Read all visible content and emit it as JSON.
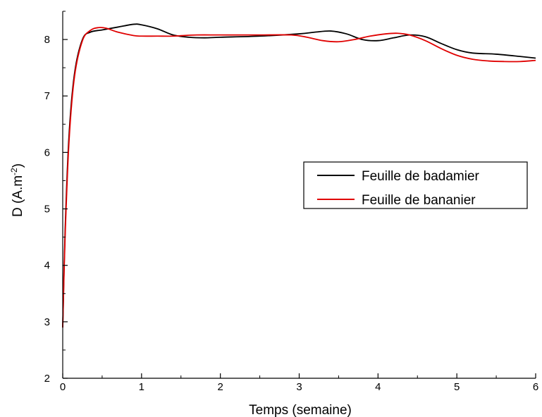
{
  "chart_data": {
    "type": "line",
    "title": "",
    "xlabel": "Temps (semaine)",
    "ylabel": "D (A.m",
    "ylabel_superscript": "-2",
    "ylabel_suffix": ")",
    "xlim": [
      0,
      6
    ],
    "ylim": [
      2,
      8.5
    ],
    "xticks": [
      0,
      1,
      2,
      3,
      4,
      5,
      6
    ],
    "yticks": [
      2,
      3,
      4,
      5,
      6,
      7,
      8
    ],
    "grid": false,
    "legend_position": "right-middle",
    "series": [
      {
        "name": "Feuille de badamier",
        "color": "#000000",
        "points": [
          [
            0,
            2.9
          ],
          [
            0.03,
            4.6
          ],
          [
            0.08,
            6.3
          ],
          [
            0.15,
            7.4
          ],
          [
            0.25,
            8.0
          ],
          [
            0.35,
            8.13
          ],
          [
            0.5,
            8.17
          ],
          [
            0.7,
            8.22
          ],
          [
            0.9,
            8.27
          ],
          [
            1.0,
            8.26
          ],
          [
            1.2,
            8.19
          ],
          [
            1.4,
            8.08
          ],
          [
            1.6,
            8.04
          ],
          [
            1.8,
            8.03
          ],
          [
            2.0,
            8.04
          ],
          [
            2.5,
            8.06
          ],
          [
            3.0,
            8.1
          ],
          [
            3.2,
            8.13
          ],
          [
            3.4,
            8.15
          ],
          [
            3.6,
            8.1
          ],
          [
            3.8,
            8.0
          ],
          [
            4.0,
            7.98
          ],
          [
            4.2,
            8.03
          ],
          [
            4.4,
            8.08
          ],
          [
            4.6,
            8.05
          ],
          [
            4.8,
            7.93
          ],
          [
            5.0,
            7.82
          ],
          [
            5.2,
            7.76
          ],
          [
            5.5,
            7.74
          ],
          [
            5.8,
            7.7
          ],
          [
            6.0,
            7.67
          ]
        ]
      },
      {
        "name": "Feuille de bananier",
        "color": "#e00000",
        "points": [
          [
            0,
            2.9
          ],
          [
            0.03,
            4.5
          ],
          [
            0.08,
            6.2
          ],
          [
            0.15,
            7.35
          ],
          [
            0.25,
            7.98
          ],
          [
            0.35,
            8.16
          ],
          [
            0.45,
            8.21
          ],
          [
            0.55,
            8.2
          ],
          [
            0.7,
            8.13
          ],
          [
            0.9,
            8.07
          ],
          [
            1.0,
            8.06
          ],
          [
            1.2,
            8.06
          ],
          [
            1.4,
            8.06
          ],
          [
            1.7,
            8.08
          ],
          [
            2.0,
            8.08
          ],
          [
            2.5,
            8.08
          ],
          [
            2.9,
            8.08
          ],
          [
            3.1,
            8.04
          ],
          [
            3.3,
            7.98
          ],
          [
            3.5,
            7.96
          ],
          [
            3.7,
            8.0
          ],
          [
            3.9,
            8.06
          ],
          [
            4.1,
            8.1
          ],
          [
            4.25,
            8.11
          ],
          [
            4.4,
            8.08
          ],
          [
            4.6,
            7.98
          ],
          [
            4.8,
            7.84
          ],
          [
            5.0,
            7.72
          ],
          [
            5.2,
            7.65
          ],
          [
            5.4,
            7.62
          ],
          [
            5.6,
            7.61
          ],
          [
            5.8,
            7.61
          ],
          [
            6.0,
            7.63
          ]
        ]
      }
    ]
  }
}
